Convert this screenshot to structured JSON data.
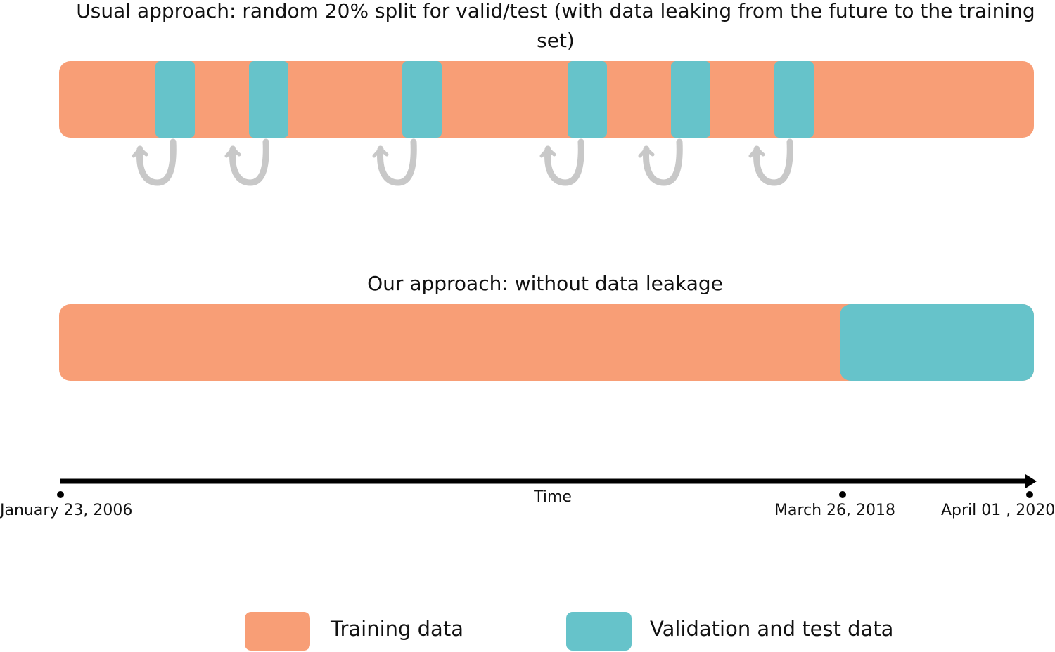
{
  "usual": {
    "title": "Usual approach: random 20% split for valid/test (with data leaking from the future to the training set)"
  },
  "ours": {
    "title": "Our approach: without data leakage"
  },
  "timeline": {
    "axis_label": "Time",
    "ticks": [
      {
        "label": "January 23, 2006"
      },
      {
        "label": "March 26, 2018"
      },
      {
        "label": "April 01 , 2020"
      }
    ]
  },
  "legend": {
    "training_label": "Training data",
    "validation_label": "Validation and test data"
  },
  "colors": {
    "training": "#f89e76",
    "validation": "#66c3ca",
    "arrow": "#c8c8c8",
    "timeline": "#000000"
  }
}
